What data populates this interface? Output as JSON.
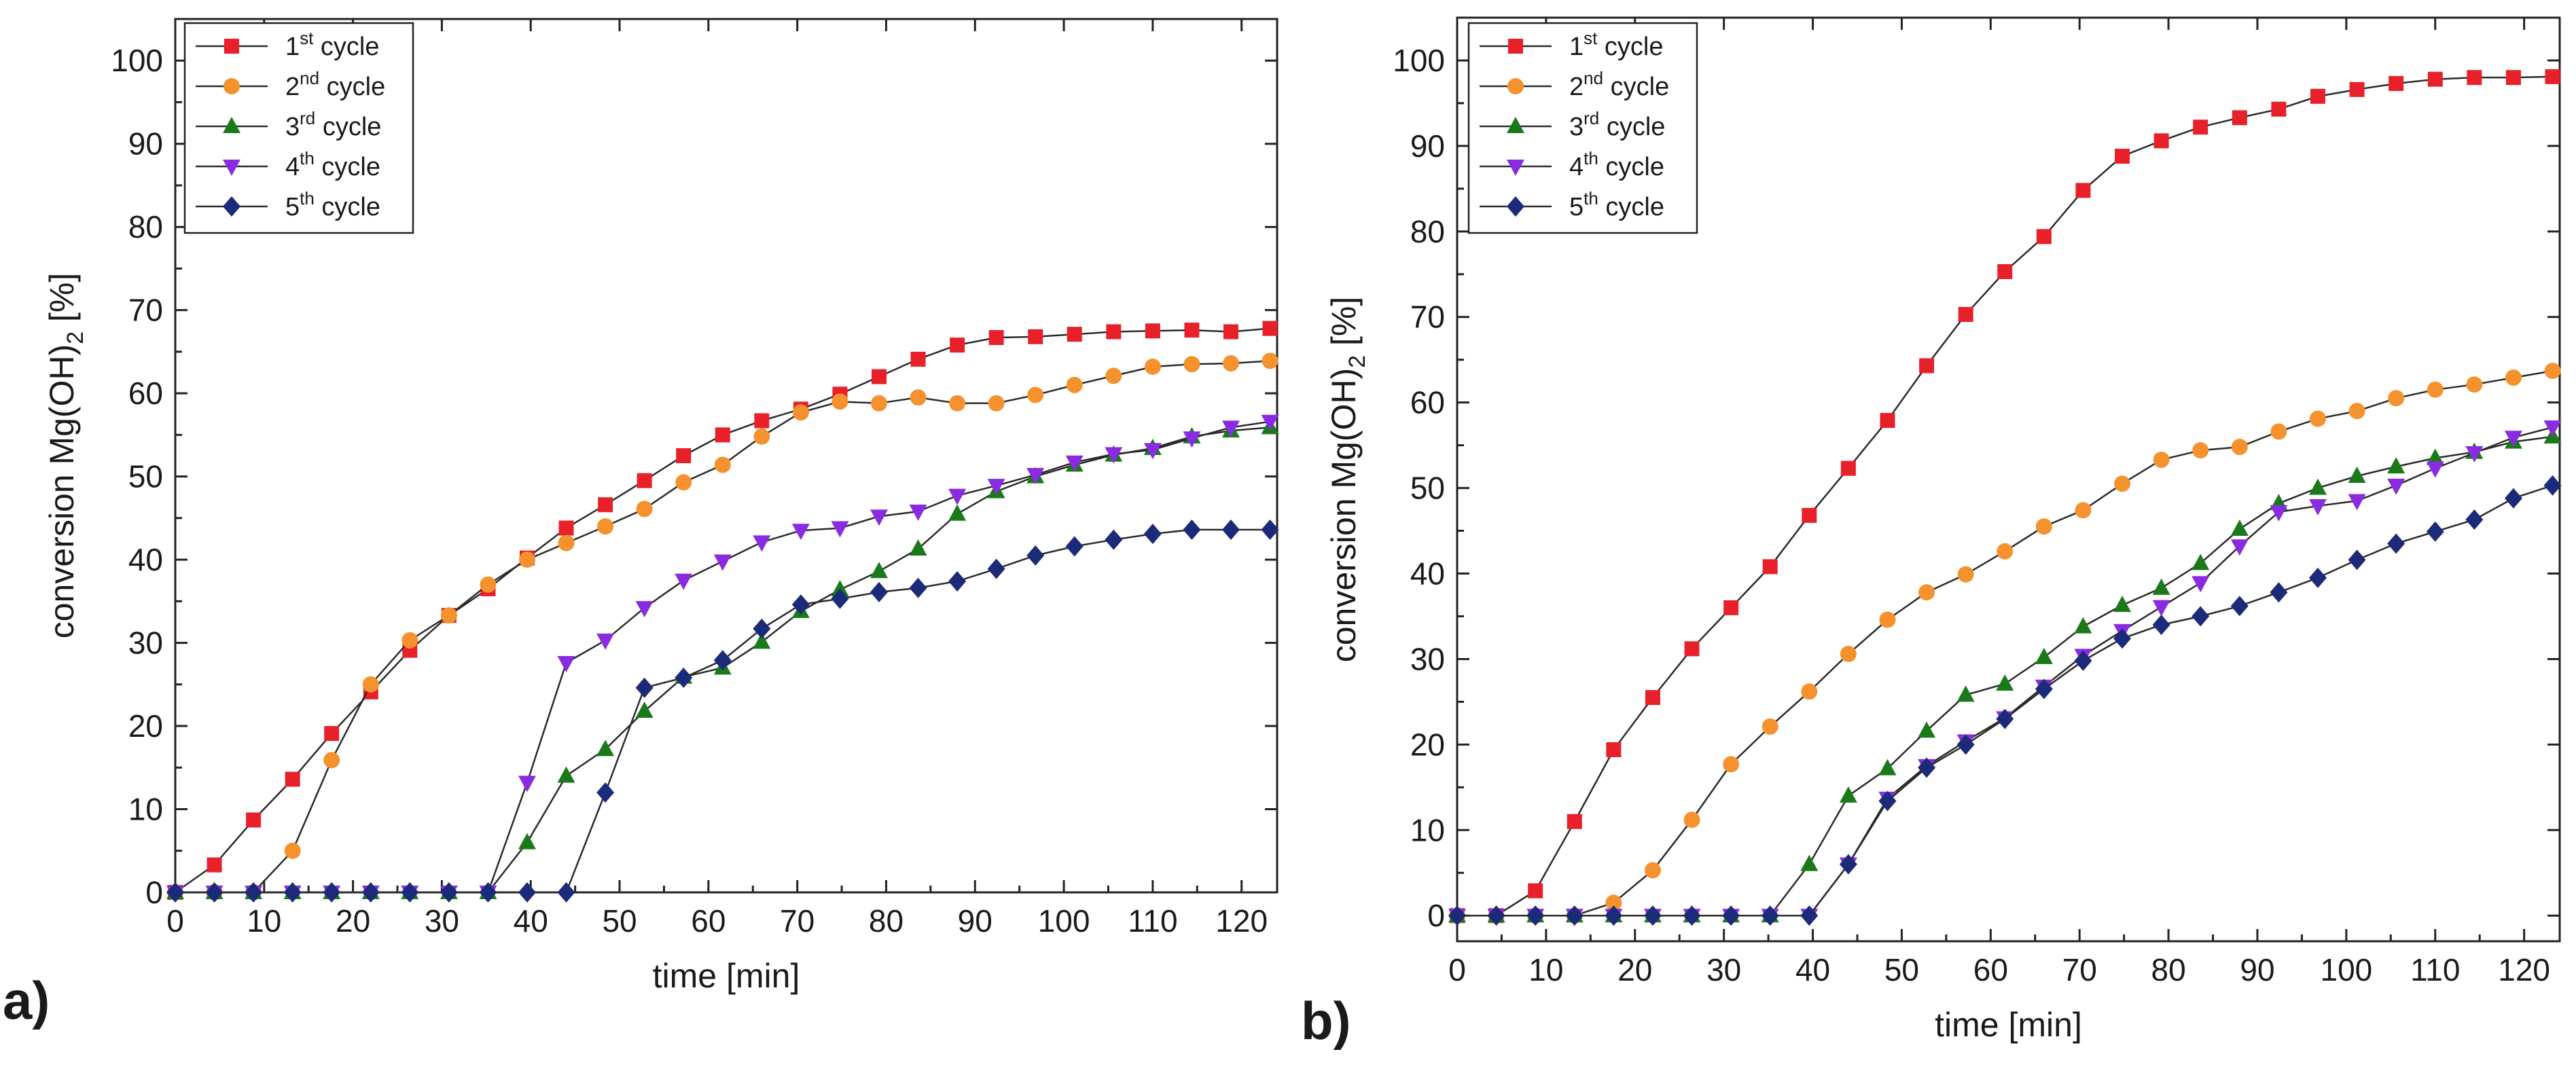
{
  "chart_data": [
    {
      "type": "line",
      "panel_label": "a)",
      "xlabel": "time [min]",
      "ylabel": "conversion Mg(OH)",
      "ylabel_sub": "2",
      "ylabel_unit": " [%]",
      "xlim": [
        0,
        124
      ],
      "ylim": [
        0,
        105
      ],
      "xticks": [
        0,
        10,
        20,
        30,
        40,
        50,
        60,
        70,
        80,
        90,
        100,
        110,
        120
      ],
      "yticks": [
        0,
        10,
        20,
        30,
        40,
        50,
        60,
        70,
        80,
        90,
        100
      ],
      "x": [
        0,
        4.4,
        8.8,
        13.2,
        17.6,
        22,
        26.4,
        30.8,
        35.2,
        39.6,
        44,
        48.4,
        52.8,
        57.2,
        61.6,
        66,
        70.4,
        74.8,
        79.2,
        83.6,
        88,
        92.4,
        96.8,
        101.2,
        105.6,
        110,
        114.4,
        118.8,
        123.2
      ],
      "series": [
        {
          "name": "1st cycle",
          "base": "1",
          "sup": "st",
          "rest": " cycle",
          "color": "#e8202a",
          "marker": "square",
          "values": [
            0,
            3.3,
            8.7,
            13.6,
            19.1,
            24.1,
            29.1,
            33.3,
            36.5,
            40.2,
            43.8,
            46.6,
            49.5,
            52.5,
            55.0,
            56.7,
            58.1,
            59.9,
            62.0,
            64.1,
            65.8,
            66.7,
            66.8,
            67.1,
            67.4,
            67.5,
            67.6,
            67.4,
            67.8
          ]
        },
        {
          "name": "2nd cycle",
          "base": "2",
          "sup": "nd",
          "rest": " cycle",
          "color": "#f5922e",
          "marker": "circle",
          "values": [
            0,
            0,
            0,
            5.0,
            15.9,
            25.0,
            30.3,
            33.3,
            37.0,
            40.0,
            42.0,
            44.0,
            46.1,
            49.3,
            51.4,
            54.8,
            57.7,
            59.0,
            58.8,
            59.5,
            58.8,
            58.8,
            59.8,
            61.0,
            62.1,
            63.2,
            63.5,
            63.6,
            63.9
          ]
        },
        {
          "name": "3rd cycle",
          "base": "3",
          "sup": "rd",
          "rest": " cycle",
          "color": "#1a7a1a",
          "marker": "triangle-up",
          "values": [
            0,
            0,
            0,
            0,
            0,
            0,
            0,
            0,
            0,
            6.0,
            14.0,
            17.2,
            21.8,
            25.9,
            27.0,
            30.1,
            33.8,
            36.4,
            38.6,
            41.3,
            45.5,
            48.2,
            50.0,
            51.4,
            52.6,
            53.4,
            54.8,
            55.5,
            55.9
          ]
        },
        {
          "name": "4th cycle",
          "base": "4",
          "sup": "th",
          "rest": " cycle",
          "color": "#8a2be2",
          "marker": "triangle-down",
          "values": [
            0,
            0,
            0,
            0,
            0,
            0,
            0,
            0,
            0,
            13.2,
            27.6,
            30.3,
            34.2,
            37.5,
            39.8,
            42.1,
            43.5,
            43.8,
            45.2,
            45.8,
            47.7,
            48.9,
            50.2,
            51.7,
            52.7,
            53.2,
            54.6,
            55.9,
            56.6
          ]
        },
        {
          "name": "5th cycle",
          "base": "5",
          "sup": "th",
          "rest": " cycle",
          "color": "#1c2a7a",
          "marker": "diamond",
          "values": [
            0,
            0,
            0,
            0,
            0,
            0,
            0,
            0,
            0,
            0,
            0,
            12.0,
            24.6,
            25.8,
            27.9,
            31.7,
            34.6,
            35.3,
            36.1,
            36.6,
            37.4,
            38.9,
            40.5,
            41.6,
            42.4,
            43.1,
            43.6,
            43.6,
            43.6
          ]
        }
      ]
    },
    {
      "type": "line",
      "panel_label": "b)",
      "xlabel": "time [min]",
      "ylabel": "conversion Mg(OH)",
      "ylabel_sub": "2",
      "ylabel_unit": " [%]",
      "xlim": [
        0,
        124
      ],
      "ylim": [
        -3,
        105
      ],
      "xticks": [
        0,
        10,
        20,
        30,
        40,
        50,
        60,
        70,
        80,
        90,
        100,
        110,
        120
      ],
      "yticks": [
        0,
        10,
        20,
        30,
        40,
        50,
        60,
        70,
        80,
        90,
        100
      ],
      "x": [
        0,
        4.4,
        8.8,
        13.2,
        17.6,
        22,
        26.4,
        30.8,
        35.2,
        39.6,
        44,
        48.4,
        52.8,
        57.2,
        61.6,
        66,
        70.4,
        74.8,
        79.2,
        83.6,
        88,
        92.4,
        96.8,
        101.2,
        105.6,
        110,
        114.4,
        118.8,
        123.2
      ],
      "series": [
        {
          "name": "1st cycle",
          "base": "1",
          "sup": "st",
          "rest": " cycle",
          "color": "#e8202a",
          "marker": "square",
          "values": [
            0,
            0,
            2.9,
            11.0,
            19.4,
            25.5,
            31.2,
            36.0,
            40.8,
            46.8,
            52.3,
            57.9,
            64.3,
            70.3,
            75.3,
            79.4,
            84.8,
            88.8,
            90.6,
            92.2,
            93.3,
            94.3,
            95.8,
            96.6,
            97.3,
            97.8,
            98.0,
            98.0,
            98.1
          ]
        },
        {
          "name": "2nd cycle",
          "base": "2",
          "sup": "nd",
          "rest": " cycle",
          "color": "#f5922e",
          "marker": "circle",
          "values": [
            0,
            0,
            0,
            0,
            1.5,
            5.3,
            11.2,
            17.7,
            22.1,
            26.2,
            30.6,
            34.6,
            37.8,
            39.9,
            42.6,
            45.5,
            47.4,
            50.5,
            53.3,
            54.4,
            54.8,
            56.6,
            58.1,
            59.0,
            60.5,
            61.5,
            62.1,
            62.9,
            63.7
          ]
        },
        {
          "name": "3rd cycle",
          "base": "3",
          "sup": "rd",
          "rest": " cycle",
          "color": "#1a7a1a",
          "marker": "triangle-up",
          "values": [
            0,
            0,
            0,
            0,
            0,
            0,
            0,
            0,
            0,
            6.0,
            14.0,
            17.2,
            21.6,
            25.8,
            27.1,
            30.2,
            33.8,
            36.3,
            38.3,
            41.2,
            45.2,
            48.2,
            50.0,
            51.4,
            52.5,
            53.5,
            54.2,
            55.4,
            56.0
          ]
        },
        {
          "name": "4th cycle",
          "base": "4",
          "sup": "th",
          "rest": " cycle",
          "color": "#8a2be2",
          "marker": "triangle-down",
          "values": [
            0,
            0,
            0,
            0,
            0,
            0,
            0,
            0,
            0,
            0,
            6.0,
            13.7,
            17.5,
            20.4,
            23.1,
            26.8,
            30.4,
            33.3,
            36.1,
            38.9,
            43.2,
            47.2,
            47.9,
            48.5,
            50.3,
            52.3,
            54.1,
            55.9,
            57.1
          ]
        },
        {
          "name": "5th cycle",
          "base": "5",
          "sup": "th",
          "rest": " cycle",
          "color": "#1c2a7a",
          "marker": "diamond",
          "values": [
            0,
            0,
            0,
            0,
            0,
            0,
            0,
            0,
            0,
            0,
            6.0,
            13.4,
            17.3,
            20.0,
            23.0,
            26.5,
            29.8,
            32.4,
            34.0,
            35.0,
            36.2,
            37.8,
            39.5,
            41.6,
            43.5,
            44.9,
            46.3,
            48.8,
            50.3
          ]
        }
      ]
    }
  ]
}
